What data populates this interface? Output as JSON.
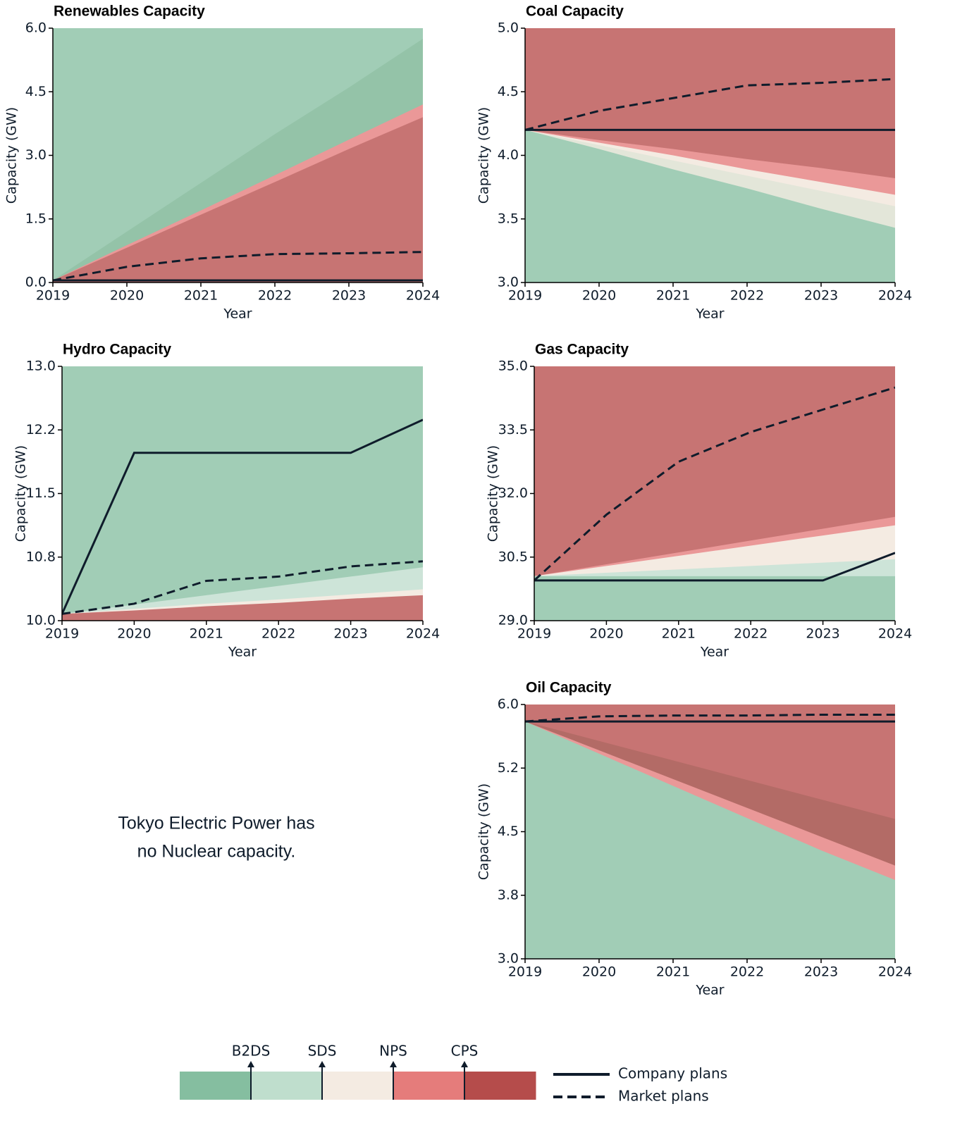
{
  "chart_data": [
    {
      "type": "area",
      "title": "Renewables Capacity",
      "xlabel": "Year",
      "ylabel": "Capacity (GW)",
      "x": [
        2019,
        2020,
        2021,
        2022,
        2023,
        2024
      ],
      "xlim": [
        2019,
        2024
      ],
      "xticks": [
        2019,
        2020,
        2021,
        2022,
        2023,
        2024
      ],
      "ylim": [
        0,
        6
      ],
      "yticks": [
        {
          "value": 0,
          "label": "0.0"
        },
        1.5,
        {
          "value": 3,
          "label": "3.0"
        },
        4.5,
        {
          "value": 6,
          "label": "6.0"
        }
      ],
      "background": "#a1cdb6",
      "areas": [
        {
          "color": "#94c3a8",
          "values": [
            0.05,
            1.2,
            2.35,
            3.5,
            4.6,
            5.75
          ]
        },
        {
          "color": "#ea9898",
          "values": [
            0.05,
            0.88,
            1.7,
            2.53,
            3.37,
            4.2
          ]
        },
        {
          "color": "#c77473",
          "values": [
            0.05,
            0.82,
            1.6,
            2.37,
            3.15,
            3.9
          ]
        }
      ],
      "lines": [
        {
          "style": "solid",
          "color": "#0f1c2b",
          "values": [
            0.05,
            0.05,
            0.05,
            0.05,
            0.05,
            0.05
          ]
        },
        {
          "style": "dashed",
          "color": "#0f1c2b",
          "values": [
            0.05,
            0.37,
            0.57,
            0.67,
            0.69,
            0.72
          ]
        }
      ]
    },
    {
      "type": "area",
      "title": "Coal Capacity",
      "xlabel": "Year",
      "ylabel": "Capacity (GW)",
      "x": [
        2019,
        2020,
        2021,
        2022,
        2023,
        2024
      ],
      "xlim": [
        2019,
        2024
      ],
      "xticks": [
        2019,
        2020,
        2021,
        2022,
        2023,
        2024
      ],
      "ylim": [
        3,
        5
      ],
      "yticks": [
        {
          "value": 3,
          "label": "3.0"
        },
        3.5,
        {
          "value": 4,
          "label": "4.0"
        },
        4.5,
        {
          "value": 5,
          "label": "5.0"
        }
      ],
      "background": "#c77473",
      "areas": [
        {
          "color": "#ea9898",
          "values": [
            4.2,
            4.12,
            4.05,
            3.97,
            3.9,
            3.82
          ]
        },
        {
          "color": "#f4ebe2",
          "values": [
            4.2,
            4.1,
            4.0,
            3.89,
            3.79,
            3.69
          ]
        },
        {
          "color": "#e3e6d9",
          "values": [
            4.2,
            4.08,
            3.96,
            3.84,
            3.72,
            3.6
          ]
        },
        {
          "color": "#a1cdb6",
          "values": [
            4.2,
            4.05,
            3.89,
            3.74,
            3.58,
            3.43
          ]
        }
      ],
      "lines": [
        {
          "style": "solid",
          "color": "#0f1c2b",
          "values": [
            4.2,
            4.2,
            4.2,
            4.2,
            4.2,
            4.2
          ]
        },
        {
          "style": "dashed",
          "color": "#0f1c2b",
          "values": [
            4.2,
            4.35,
            4.45,
            4.55,
            4.57,
            4.6
          ]
        }
      ]
    },
    {
      "type": "area",
      "title": "Hydro Capacity",
      "xlabel": "Year",
      "ylabel": "Capacity (GW)",
      "x": [
        2019,
        2020,
        2021,
        2022,
        2023,
        2024
      ],
      "xlim": [
        2019,
        2024
      ],
      "xticks": [
        2019,
        2020,
        2021,
        2022,
        2023,
        2024
      ],
      "ylim": [
        10,
        13
      ],
      "yticks": [
        {
          "value": 10,
          "label": "10.0"
        },
        {
          "value": 10.75,
          "label": "10.8"
        },
        11.5,
        {
          "value": 12.25,
          "label": "12.2"
        },
        {
          "value": 13,
          "label": "13.0"
        }
      ],
      "background": "#a1cdb6",
      "areas": [
        {
          "color": "#cde4d8",
          "values": [
            10.08,
            10.19,
            10.3,
            10.41,
            10.52,
            10.63
          ]
        },
        {
          "color": "#f4ebe2",
          "values": [
            10.08,
            10.14,
            10.2,
            10.25,
            10.31,
            10.37
          ]
        },
        {
          "color": "#c77473",
          "values": [
            10.08,
            10.12,
            10.17,
            10.21,
            10.26,
            10.3
          ]
        }
      ],
      "lines": [
        {
          "style": "solid",
          "color": "#0f1c2b",
          "values": [
            10.08,
            11.98,
            11.98,
            11.98,
            11.98,
            12.37
          ]
        },
        {
          "style": "dashed",
          "color": "#0f1c2b",
          "values": [
            10.08,
            10.2,
            10.47,
            10.52,
            10.64,
            10.7
          ]
        }
      ]
    },
    {
      "type": "area",
      "title": "Gas Capacity",
      "xlabel": "Year",
      "ylabel": "Capacity (GW)",
      "x": [
        2019,
        2020,
        2021,
        2022,
        2023,
        2024
      ],
      "xlim": [
        2019,
        2024
      ],
      "xticks": [
        2019,
        2020,
        2021,
        2022,
        2023,
        2024
      ],
      "ylim": [
        29,
        35
      ],
      "yticks": [
        {
          "value": 29,
          "label": "29.0"
        },
        30.5,
        {
          "value": 32,
          "label": "32.0"
        },
        33.5,
        {
          "value": 35,
          "label": "35.0"
        }
      ],
      "background": "#c77473",
      "areas": [
        {
          "color": "#ea9898",
          "values": [
            30.05,
            30.33,
            30.61,
            30.89,
            31.17,
            31.45
          ]
        },
        {
          "color": "#f4ebe2",
          "values": [
            30.05,
            30.29,
            30.53,
            30.77,
            31.01,
            31.25
          ]
        },
        {
          "color": "#cde4d8",
          "values": [
            30.05,
            30.13,
            30.21,
            30.29,
            30.37,
            30.45
          ]
        },
        {
          "color": "#a1cdb6",
          "values": [
            30.05,
            30.05,
            30.05,
            30.05,
            30.05,
            30.05
          ]
        }
      ],
      "lines": [
        {
          "style": "solid",
          "color": "#0f1c2b",
          "values": [
            29.95,
            29.95,
            29.95,
            29.95,
            29.95,
            30.6
          ]
        },
        {
          "style": "dashed",
          "color": "#0f1c2b",
          "values": [
            29.95,
            31.5,
            32.75,
            33.45,
            33.98,
            34.5
          ]
        }
      ]
    },
    {
      "type": "area",
      "title": "Oil Capacity",
      "xlabel": "Year",
      "ylabel": "Capacity (GW)",
      "x": [
        2019,
        2020,
        2021,
        2022,
        2023,
        2024
      ],
      "xlim": [
        2019,
        2024
      ],
      "xticks": [
        2019,
        2020,
        2021,
        2022,
        2023,
        2024
      ],
      "ylim": [
        3,
        6
      ],
      "yticks": [
        {
          "value": 3,
          "label": "3.0"
        },
        {
          "value": 3.75,
          "label": "3.8"
        },
        4.5,
        {
          "value": 5.25,
          "label": "5.2"
        },
        {
          "value": 6,
          "label": "6.0"
        }
      ],
      "background": "#c77473",
      "areas": [
        {
          "color": "#b36b66",
          "values": [
            5.8,
            5.57,
            5.34,
            5.11,
            4.88,
            4.65
          ]
        },
        {
          "color": "#ea9898",
          "values": [
            5.8,
            5.46,
            5.12,
            4.78,
            4.44,
            4.1
          ]
        },
        {
          "color": "#a1cdb6",
          "values": [
            5.8,
            5.42,
            5.04,
            4.66,
            4.28,
            3.93
          ]
        }
      ],
      "lines": [
        {
          "style": "solid",
          "color": "#0f1c2b",
          "values": [
            5.8,
            5.8,
            5.8,
            5.8,
            5.8,
            5.8
          ]
        },
        {
          "style": "dashed",
          "color": "#0f1c2b",
          "values": [
            5.8,
            5.86,
            5.87,
            5.87,
            5.88,
            5.88
          ]
        }
      ]
    }
  ],
  "note": [
    "Tokyo Electric Power has",
    "no Nuclear capacity."
  ],
  "legend": {
    "scenarios": [
      "B2DS",
      "SDS",
      "NPS",
      "CPS"
    ],
    "colors": [
      "#85bea0",
      "#bfdecd",
      "#f4ebe2",
      "#e57c7b",
      "#b54c4b"
    ],
    "lines": [
      {
        "label": "Company plans",
        "style": "solid"
      },
      {
        "label": "Market plans",
        "style": "dashed"
      }
    ]
  }
}
